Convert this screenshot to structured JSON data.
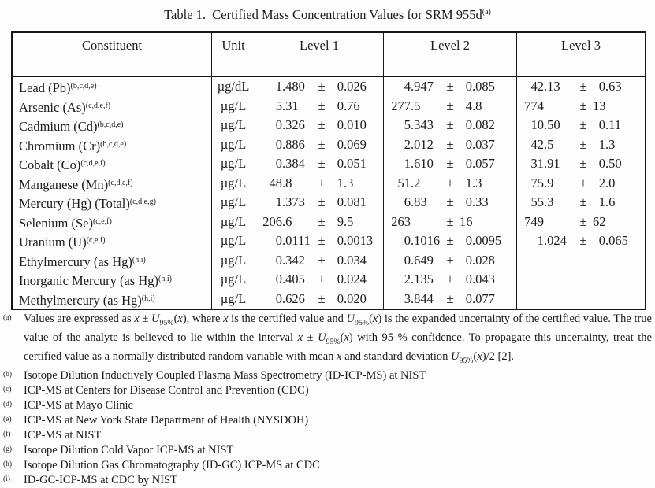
{
  "title": {
    "text": "Table 1.  Certified Mass Concentration Values for SRM 955d",
    "note": "(a)"
  },
  "table": {
    "columns": [
      "Constituent",
      "Unit",
      "Level 1",
      "Level 2",
      "Level 3"
    ],
    "pm": "±",
    "rows": [
      {
        "constituent": "Lead (Pb)",
        "notes": "(b,c,d,e)",
        "unit": "µg/dL",
        "levels": [
          {
            "v": "1.480",
            "u": "0.026"
          },
          {
            "v": "4.947",
            "u": "0.085"
          },
          {
            "v": "42.13",
            "u": "0.63"
          }
        ]
      },
      {
        "constituent": "Arsenic (As)",
        "notes": "(c,d,e,f)",
        "unit": "µg/L",
        "levels": [
          {
            "v": "5.31",
            "u": "0.76"
          },
          {
            "v": "277.5",
            "u": "4.8"
          },
          {
            "v": "774",
            "u": "13"
          }
        ]
      },
      {
        "constituent": "Cadmium (Cd)",
        "notes": "(b,c,d,e)",
        "unit": "µg/L",
        "levels": [
          {
            "v": "0.326",
            "u": "0.010"
          },
          {
            "v": "5.343",
            "u": "0.082"
          },
          {
            "v": "10.50",
            "u": "0.11"
          }
        ]
      },
      {
        "constituent": "Chromium (Cr)",
        "notes": "(b,c,d,e)",
        "unit": "µg/L",
        "levels": [
          {
            "v": "0.886",
            "u": "0.069"
          },
          {
            "v": "2.012",
            "u": "0.037"
          },
          {
            "v": "42.5",
            "u": "1.3"
          }
        ]
      },
      {
        "constituent": "Cobalt (Co)",
        "notes": "(c,d,e,f)",
        "unit": "µg/L",
        "levels": [
          {
            "v": "0.384",
            "u": "0.051"
          },
          {
            "v": "1.610",
            "u": "0.057"
          },
          {
            "v": "31.91",
            "u": "0.50"
          }
        ]
      },
      {
        "constituent": "Manganese (Mn)",
        "notes": "(c,d,e,f)",
        "unit": "µg/L",
        "levels": [
          {
            "v": "48.8",
            "u": "1.3"
          },
          {
            "v": "51.2",
            "u": "1.3"
          },
          {
            "v": "75.9",
            "u": "2.0"
          }
        ]
      },
      {
        "constituent": "Mercury (Hg) (Total)",
        "notes": "(c,d,e,g)",
        "unit": "µg/L",
        "levels": [
          {
            "v": "1.373",
            "u": "0.081"
          },
          {
            "v": "6.83",
            "u": "0.33"
          },
          {
            "v": "55.3",
            "u": "1.6"
          }
        ]
      },
      {
        "constituent": "Selenium (Se)",
        "notes": "(c,e,f)",
        "unit": "µg/L",
        "levels": [
          {
            "v": "206.6",
            "u": "9.5"
          },
          {
            "v": "263",
            "u": "16"
          },
          {
            "v": "749",
            "u": "62"
          }
        ]
      },
      {
        "constituent": "Uranium (U)",
        "notes": "(c,e,f)",
        "unit": "µg/L",
        "levels": [
          {
            "v": "0.0111",
            "u": "0.0013"
          },
          {
            "v": "0.1016",
            "u": "0.0095"
          },
          {
            "v": "1.024",
            "u": "0.065"
          }
        ]
      },
      {
        "constituent": "Ethylmercury (as Hg)",
        "notes": "(h,i)",
        "unit": "µg/L",
        "levels": [
          {
            "v": "0.342",
            "u": "0.034"
          },
          {
            "v": "0.649",
            "u": "0.028"
          },
          null
        ]
      },
      {
        "constituent": "Inorganic Mercury (as Hg)",
        "notes": "(h,i)",
        "unit": "µg/L",
        "levels": [
          {
            "v": "0.405",
            "u": "0.024"
          },
          {
            "v": "2.135",
            "u": "0.043"
          },
          null
        ]
      },
      {
        "constituent": "Methylmercury (as Hg)",
        "notes": "(h,i)",
        "unit": "µg/L",
        "levels": [
          {
            "v": "0.626",
            "u": "0.020"
          },
          {
            "v": "3.844",
            "u": "0.077"
          },
          null
        ]
      }
    ]
  },
  "footnotes": [
    {
      "label": "(a)",
      "text": "Values are expressed as x ± U95%(x), where x is the certified value and U95%(x) is the expanded uncertainty of the certified value.  The true value of the analyte is believed to lie within the interval x ± U95%(x) with 95 % confidence.  To propagate this uncertainty, treat the certified value as a normally distributed random variable with mean x and standard deviation U95%(x)/2 [2]."
    },
    {
      "label": "(b)",
      "text": "Isotope Dilution Inductively Coupled Plasma Mass Spectrometry (ID-ICP-MS) at NIST"
    },
    {
      "label": "(c)",
      "text": "ICP-MS at Centers for Disease Control and Prevention (CDC)"
    },
    {
      "label": "(d)",
      "text": "ICP-MS at Mayo Clinic"
    },
    {
      "label": "(e)",
      "text": "ICP-MS at New York State Department of Health (NYSDOH)"
    },
    {
      "label": "(f)",
      "text": "ICP-MS at NIST"
    },
    {
      "label": "(g)",
      "text": "Isotope Dilution Cold Vapor ICP-MS at NIST"
    },
    {
      "label": "(h)",
      "text": "Isotope Dilution Gas Chromatography (ID-GC) ICP-MS at CDC"
    },
    {
      "label": "(i)",
      "text": "ID-GC-ICP-MS at CDC by NIST"
    }
  ],
  "colors": {
    "background": "#fdfdfd",
    "text": "#1b1b1b",
    "border": "#161616"
  }
}
